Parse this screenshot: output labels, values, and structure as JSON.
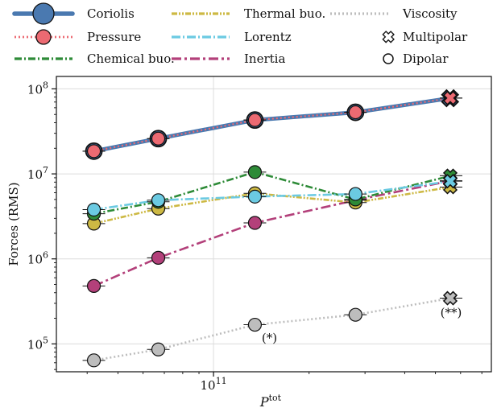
{
  "chart_data": {
    "type": "line",
    "xscale": "log",
    "yscale": "log",
    "xlim": [
      32000000000,
      750000000000
    ],
    "ylim": [
      47000,
      140000000
    ],
    "xlabel_main": "P",
    "xlabel_sup": "tot",
    "ylabel": "Forces (RMS)",
    "grid": true,
    "legend_position": "top",
    "x": [
      42000000000,
      67000000000,
      135000000000,
      280000000000,
      560000000000
    ],
    "xticks": [
      {
        "value": 100000000000,
        "base": "10",
        "exp": "11"
      }
    ],
    "yticks": [
      {
        "value": 100000,
        "base": "10",
        "exp": "5"
      },
      {
        "value": 1000000,
        "base": "10",
        "exp": "6"
      },
      {
        "value": 10000000,
        "base": "10",
        "exp": "7"
      },
      {
        "value": 100000000,
        "base": "10",
        "exp": "8"
      }
    ],
    "series": [
      {
        "name": "Coriolis",
        "color": "#4a79b0",
        "dash": "",
        "width": 5,
        "legend_col": 0,
        "legend_row": 0,
        "marker_r": 10,
        "values": [
          18500000,
          26000000,
          43000000,
          53000000,
          78000000
        ]
      },
      {
        "name": "Pressure",
        "color": "#ec6a72",
        "dash": "2 3",
        "width": 2.2,
        "legend_col": 0,
        "legend_row": 1,
        "marker_r": 8,
        "values": [
          18500000,
          26000000,
          43000000,
          53000000,
          78000000
        ]
      },
      {
        "name": "Chemical buo.",
        "color": "#2e8b38",
        "dash": "9 3 2 3",
        "width": 2.6,
        "legend_col": 0,
        "legend_row": 2,
        "marker_r": 8,
        "values": [
          3400000,
          4700000,
          10500000,
          5000000,
          9500000
        ]
      },
      {
        "name": "Thermal buo.",
        "color": "#cdb944",
        "dash": "7 2 2 2 2 2",
        "width": 2.6,
        "legend_col": 1,
        "legend_row": 0,
        "marker_r": 8,
        "values": [
          2600000,
          3900000,
          5900000,
          4600000,
          7000000
        ]
      },
      {
        "name": "Lorentz",
        "color": "#6bcae2",
        "dash": "11 3 2 3",
        "width": 2.6,
        "legend_col": 1,
        "legend_row": 1,
        "marker_r": 8,
        "values": [
          3800000,
          4900000,
          5400000,
          5800000,
          8200000
        ]
      },
      {
        "name": "Inertia",
        "color": "#b3407a",
        "dash": "12 4 3 4",
        "width": 2.6,
        "legend_col": 1,
        "legend_row": 2,
        "marker_r": 8,
        "values": [
          480000,
          1030000,
          2650000,
          4900000,
          8300000
        ]
      },
      {
        "name": "Viscosity",
        "color": "#bdbdbd",
        "dash": "2 3",
        "width": 2.6,
        "legend_col": 2,
        "legend_row": 0,
        "marker_r": 8,
        "values": [
          64000,
          86000,
          168000,
          220000,
          345000
        ]
      }
    ],
    "marker_types": [
      {
        "name": "Multipolar",
        "symbol": "x",
        "legend_col": 2,
        "legend_row": 1
      },
      {
        "name": "Dipolar",
        "symbol": "o",
        "legend_col": 2,
        "legend_row": 2
      }
    ],
    "multipolar_point_index": 4,
    "annotations": [
      {
        "text": "(*)",
        "x": 150000000000,
        "y": 105000
      },
      {
        "text": "(**)",
        "x": 560000000000,
        "y": 210000
      }
    ]
  }
}
